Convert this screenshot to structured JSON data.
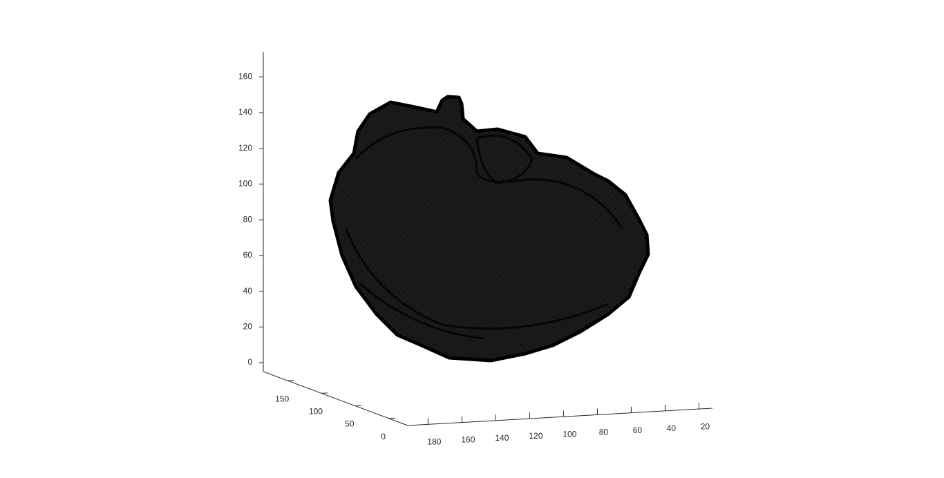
{
  "chart_data": {
    "type": "mesh3d",
    "color": "#000000",
    "zlim": [
      -5,
      174
    ],
    "zticks": [
      0,
      20,
      40,
      60,
      80,
      100,
      120,
      140,
      160
    ],
    "ylim": [
      186,
      -28
    ],
    "yticks": [
      0,
      50,
      100,
      150
    ],
    "xlim": [
      192,
      12
    ],
    "xticks": [
      180,
      160,
      140,
      120,
      100,
      80,
      60,
      40,
      20
    ]
  }
}
